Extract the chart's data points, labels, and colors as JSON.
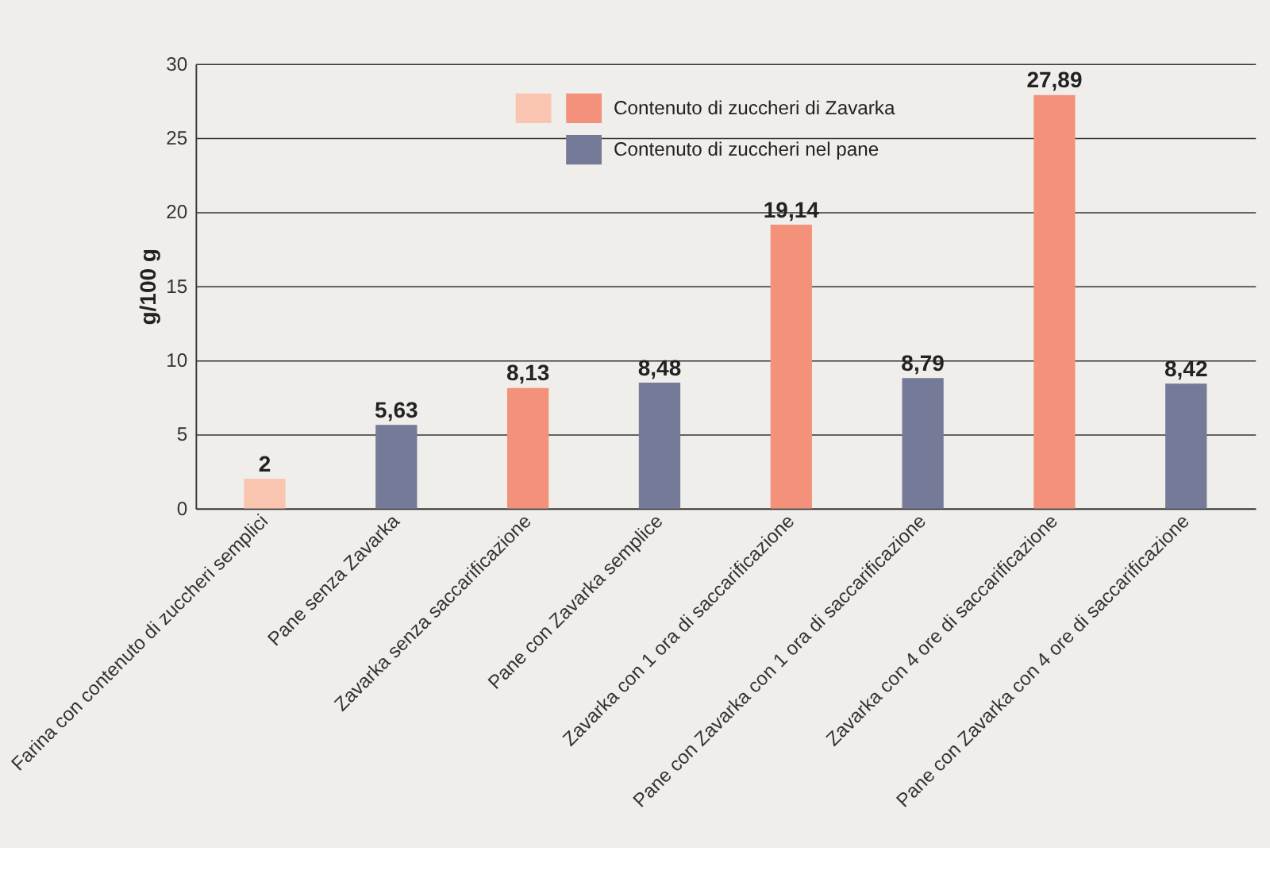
{
  "chart_data": {
    "type": "bar",
    "ylabel": "g/100 g",
    "categories": [
      "Farina con contenuto di zuccheri semplici",
      "Pane senza Zavarka",
      "Zavarka senza saccarificazione",
      "Pane con Zavarka semplice",
      "Zavarka con 1 ora di saccarificazione",
      "Pane con Zavarka con 1 ora di saccarificazione",
      "Zavarka con 4 ore di saccarificazione",
      "Pane con Zavarka con 4 ore di saccarificazione"
    ],
    "series": [
      {
        "name": "Contenuto di zuccheri di Zavarka",
        "color": "#f4917a",
        "colors": [
          "#f9c5b1",
          null,
          null,
          null,
          null,
          null,
          null,
          null
        ],
        "values": [
          2,
          null,
          8.13,
          null,
          19.14,
          null,
          27.89,
          null
        ],
        "value_labels": [
          "2",
          null,
          "8,13",
          null,
          "19,14",
          null,
          "27,89",
          null
        ]
      },
      {
        "name": "Contenuto di zuccheri nel pane",
        "color": "#757a98",
        "values": [
          null,
          5.63,
          null,
          8.48,
          null,
          8.79,
          null,
          8.42
        ],
        "value_labels": [
          null,
          "5,63",
          null,
          "8,48",
          null,
          "8,79",
          null,
          "8,42"
        ]
      }
    ],
    "ylim": [
      0,
      30
    ],
    "yticks": [
      0,
      5,
      10,
      15,
      20,
      25,
      30
    ],
    "grid": "y",
    "legend": "top"
  }
}
